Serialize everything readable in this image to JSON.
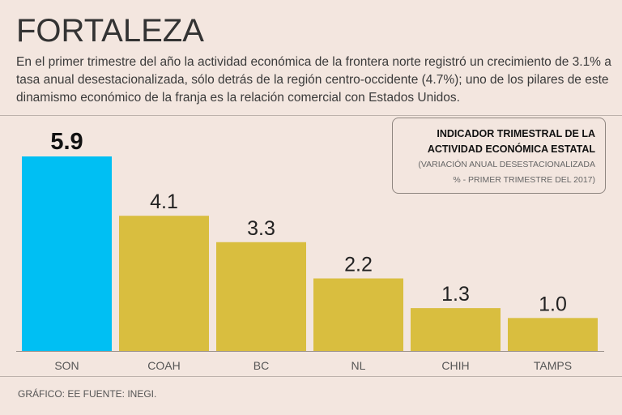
{
  "header": {
    "title": "FORTALEZA",
    "subtitle": "En el primer trimestre del año la actividad económica de la frontera norte registró un crecimiento de 3.1% a tasa anual desestacionalizada, sólo detrás de la región centro-occidente (4.7%); uno de los pilares de este dinamismo económico de la franja es la relación comercial con Estados Unidos."
  },
  "legend": {
    "title_line1": "INDICADOR TRIMESTRAL DE LA",
    "title_line2": "ACTIVIDAD ECONÓMICA ESTATAL",
    "sub_line1": "(VARIACIÓN ANUAL DESESTACIONALIZADA",
    "sub_line2": "% - PRIMER TRIMESTRE DEL 2017)"
  },
  "footer": "GRÁFICO: EE  FUENTE: INEGI.",
  "chart_data": {
    "type": "bar",
    "categories": [
      "SON",
      "COAH",
      "BC",
      "NL",
      "CHIH",
      "TAMPS"
    ],
    "values": [
      5.9,
      4.1,
      3.3,
      2.2,
      1.3,
      1.0
    ],
    "labels": [
      "5.9",
      "4.1",
      "3.3",
      "2.2",
      "1.3",
      "1.0"
    ],
    "colors": [
      "#00bff3",
      "#d9be3f",
      "#d9be3f",
      "#d9be3f",
      "#d9be3f",
      "#d9be3f"
    ],
    "title": "INDICADOR TRIMESTRAL DE LA ACTIVIDAD ECONÓMICA ESTATAL",
    "xlabel": "",
    "ylabel": "",
    "ylim": [
      0,
      5.9
    ],
    "grid": false
  }
}
